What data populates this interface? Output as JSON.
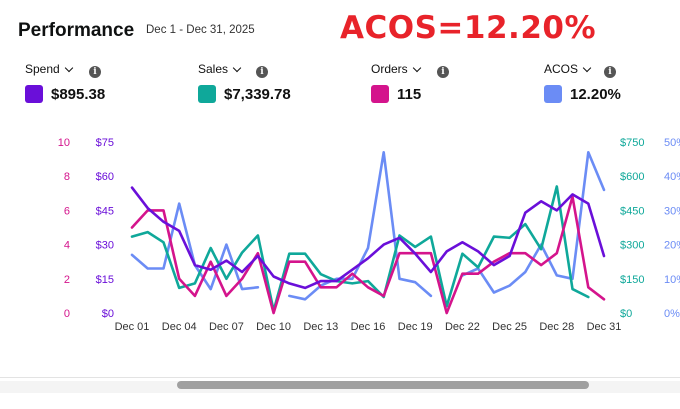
{
  "header": {
    "title": "Performance",
    "date_range": "Dec 1 - Dec 31, 2025",
    "banner": "ACOS=12.20%"
  },
  "metrics": [
    {
      "label": "Spend",
      "value": "$895.38",
      "color": "#6a0fd9"
    },
    {
      "label": "Sales",
      "value": "$7,339.78",
      "color": "#0fa89a"
    },
    {
      "label": "Orders",
      "value": "115",
      "color": "#d4148c"
    },
    {
      "label": "ACOS",
      "value": "12.20%",
      "color": "#6b8cf5"
    }
  ],
  "icons": {
    "dropdown": "chevron-down-icon",
    "info": "info-icon"
  },
  "chart_data": {
    "type": "line",
    "x": [
      "Dec 01",
      "Dec 02",
      "Dec 03",
      "Dec 04",
      "Dec 05",
      "Dec 06",
      "Dec 07",
      "Dec 08",
      "Dec 09",
      "Dec 10",
      "Dec 11",
      "Dec 12",
      "Dec 13",
      "Dec 14",
      "Dec 15",
      "Dec 16",
      "Dec 17",
      "Dec 18",
      "Dec 19",
      "Dec 20",
      "Dec 21",
      "Dec 22",
      "Dec 23",
      "Dec 24",
      "Dec 25",
      "Dec 26",
      "Dec 27",
      "Dec 28",
      "Dec 29",
      "Dec 30",
      "Dec 31"
    ],
    "x_tick_labels": [
      "Dec 01",
      "Dec 04",
      "Dec 07",
      "Dec 10",
      "Dec 13",
      "Dec 16",
      "Dec 19",
      "Dec 22",
      "Dec 25",
      "Dec 28",
      "Dec 31"
    ],
    "axes": {
      "orders": {
        "ticks": [
          "10",
          "8",
          "6",
          "4",
          "2",
          "0"
        ],
        "range": [
          0,
          10
        ],
        "color": "#d4148c"
      },
      "spend": {
        "ticks": [
          "$75",
          "$60",
          "$45",
          "$30",
          "$15",
          "$0"
        ],
        "range": [
          0,
          75
        ],
        "color": "#6a0fd9"
      },
      "sales": {
        "ticks": [
          "$750",
          "$600",
          "$450",
          "$300",
          "$150",
          "$0"
        ],
        "range": [
          0,
          750
        ],
        "color": "#0fa89a"
      },
      "acos": {
        "ticks": [
          "50%",
          "40%",
          "30%",
          "20%",
          "10%",
          "0%"
        ],
        "range": [
          0,
          50
        ],
        "color": "#6b8cf5"
      }
    },
    "series": [
      {
        "key": "acos",
        "color": "#6b8cf5",
        "values": [
          17,
          13,
          13,
          32,
          14,
          7,
          20,
          7,
          7.5,
          null,
          5,
          4,
          8,
          10,
          10,
          19,
          47,
          10,
          9,
          5,
          null,
          11,
          13,
          6,
          8,
          12,
          20,
          11,
          10,
          47,
          36
        ]
      },
      {
        "key": "sales",
        "color": "#0fa89a",
        "values": [
          335,
          355,
          310,
          110,
          130,
          285,
          150,
          265,
          340,
          10,
          260,
          260,
          170,
          140,
          130,
          140,
          70,
          340,
          290,
          335,
          30,
          260,
          200,
          335,
          330,
          390,
          280,
          555,
          105,
          70,
          null
        ]
      },
      {
        "key": "orders",
        "color": "#d4148c",
        "values": [
          5,
          6,
          6,
          2,
          1,
          3,
          1,
          2,
          3.5,
          0,
          3,
          3,
          1.5,
          1.5,
          2.3,
          1.5,
          1,
          3.5,
          3.5,
          3.5,
          0,
          2.3,
          2.3,
          3,
          3.5,
          3.5,
          2.8,
          3.5,
          6.8,
          1.5,
          0.8
        ]
      },
      {
        "key": "spend",
        "color": "#6a0fd9",
        "values": [
          55,
          46,
          40,
          36,
          21,
          19,
          23,
          18,
          25,
          16,
          13,
          11,
          14,
          14,
          19,
          24,
          30,
          33,
          26,
          18,
          27,
          31,
          27,
          21,
          25,
          44,
          49,
          45,
          52,
          48,
          25
        ]
      }
    ],
    "grid": false,
    "legend": "top"
  }
}
